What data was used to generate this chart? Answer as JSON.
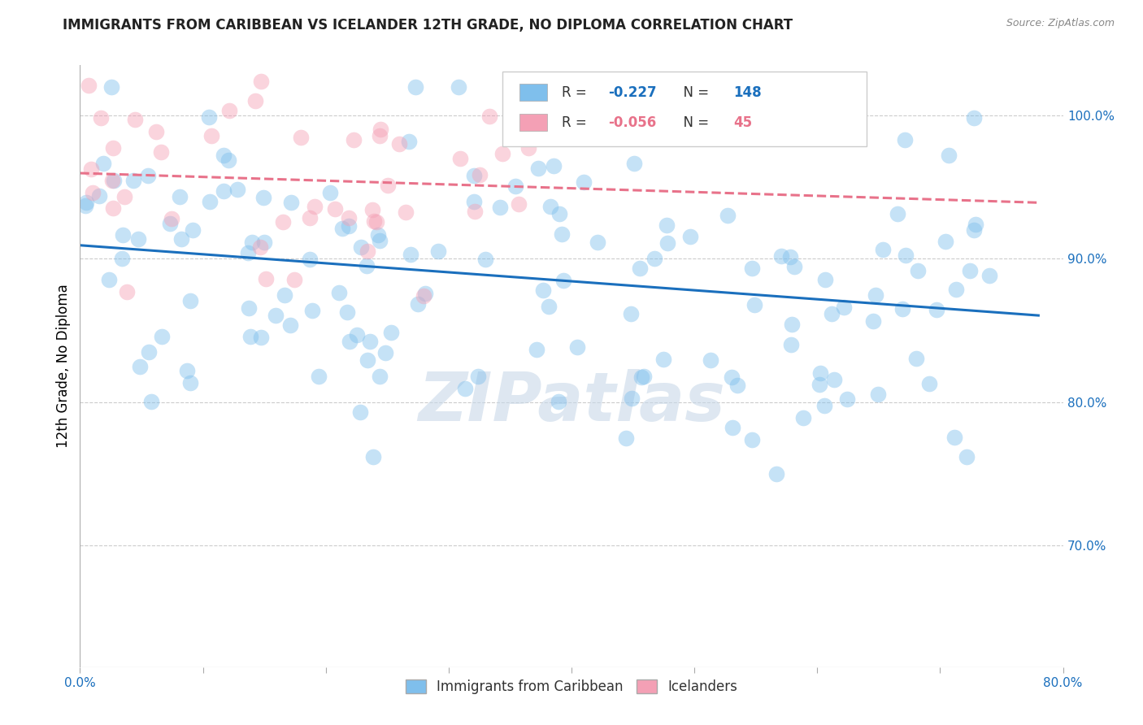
{
  "title": "IMMIGRANTS FROM CARIBBEAN VS ICELANDER 12TH GRADE, NO DIPLOMA CORRELATION CHART",
  "source": "Source: ZipAtlas.com",
  "ylabel": "12th Grade, No Diploma",
  "yticks": [
    "100.0%",
    "90.0%",
    "80.0%",
    "70.0%"
  ],
  "ytick_vals": [
    1.0,
    0.9,
    0.8,
    0.7
  ],
  "xrange": [
    0.0,
    0.8
  ],
  "yrange": [
    0.615,
    1.035
  ],
  "blue_R": -0.227,
  "blue_N": 148,
  "pink_R": -0.056,
  "pink_N": 45,
  "blue_color": "#7fbfec",
  "pink_color": "#f4a0b5",
  "blue_line_color": "#1a6fbd",
  "pink_line_color": "#e8728a",
  "watermark": "ZIPatlas",
  "legend_label_blue": "Immigrants from Caribbean",
  "legend_label_pink": "Icelanders",
  "background_color": "#ffffff",
  "grid_color": "#cccccc",
  "title_fontsize": 12,
  "marker_size": 200,
  "marker_alpha": 0.45,
  "seed": 42
}
